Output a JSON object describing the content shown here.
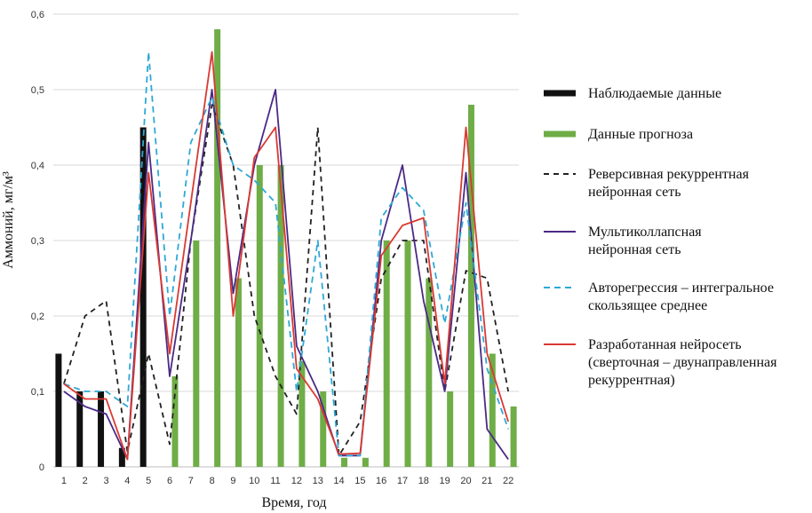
{
  "chart_data": {
    "type": "bar",
    "title": "",
    "xlabel": "Время, год",
    "ylabel": "Аммоний, мг/м³",
    "ylim": [
      0,
      0.6
    ],
    "y_ticks": [
      "0",
      "0,1",
      "0,2",
      "0,3",
      "0,4",
      "0,5",
      "0,6"
    ],
    "y_tick_values": [
      0,
      0.1,
      0.2,
      0.3,
      0.4,
      0.5,
      0.6
    ],
    "grid": true,
    "legend_position": "right",
    "categories": [
      "1",
      "2",
      "3",
      "4",
      "5",
      "6",
      "7",
      "8",
      "9",
      "10",
      "11",
      "12",
      "13",
      "14",
      "15",
      "16",
      "17",
      "18",
      "19",
      "20",
      "21",
      "22"
    ],
    "series": [
      {
        "name": "Наблюдаемые данные",
        "kind": "bar",
        "color": "#111111",
        "legend_lines": [
          "Наблюдаемые данные"
        ],
        "values": [
          0.15,
          0.1,
          0.1,
          0.025,
          0.45,
          null,
          null,
          null,
          null,
          null,
          null,
          null,
          null,
          null,
          null,
          null,
          null,
          null,
          null,
          null,
          null,
          null
        ]
      },
      {
        "name": "Данные прогноза",
        "kind": "bar",
        "color": "#6fad47",
        "legend_lines": [
          "Данные прогноза"
        ],
        "values": [
          null,
          null,
          null,
          null,
          null,
          0.12,
          0.3,
          0.58,
          0.25,
          0.4,
          0.4,
          0.14,
          0.1,
          0.012,
          0.012,
          0.3,
          0.3,
          0.25,
          0.1,
          0.48,
          0.15,
          0.08
        ]
      },
      {
        "name": "Реверсивная рекуррентная нейронная сеть",
        "kind": "line",
        "color": "#222222",
        "dash": "6,5",
        "legend_lines": [
          "Реверсивная рекуррентная",
          "нейронная сеть"
        ],
        "values": [
          0.11,
          0.2,
          0.22,
          0.02,
          0.15,
          0.03,
          0.3,
          0.48,
          0.4,
          0.2,
          0.12,
          0.07,
          0.45,
          0.015,
          0.06,
          0.25,
          0.3,
          0.3,
          0.1,
          0.26,
          0.25,
          0.1
        ]
      },
      {
        "name": "Мультиколлапсная нейронная сеть",
        "kind": "line",
        "color": "#4b2a86",
        "dash": "",
        "legend_lines": [
          "Мультиколлапсная",
          "нейронная сеть"
        ],
        "values": [
          0.1,
          0.08,
          0.07,
          0.01,
          0.43,
          0.12,
          0.3,
          0.5,
          0.23,
          0.4,
          0.5,
          0.16,
          0.1,
          0.015,
          0.015,
          0.3,
          0.4,
          0.22,
          0.1,
          0.39,
          0.05,
          0.01
        ]
      },
      {
        "name": "Авторегрессия – интегральное скользящее среднее",
        "kind": "line",
        "color": "#2ea8d6",
        "dash": "7,5",
        "legend_lines": [
          "Авторегрессия – интегральное",
          "скользящее среднее"
        ],
        "values": [
          0.11,
          0.1,
          0.1,
          0.08,
          0.55,
          0.2,
          0.43,
          0.49,
          0.4,
          0.38,
          0.35,
          0.1,
          0.3,
          0.015,
          0.015,
          0.33,
          0.37,
          0.34,
          0.19,
          0.35,
          0.13,
          0.05
        ]
      },
      {
        "name": "Разработанная нейросеть (сверточная – двунаправленная рекуррентная)",
        "kind": "line",
        "color": "#d93a33",
        "dash": "",
        "legend_lines": [
          "Разработанная нейросеть",
          "(сверточная – двунаправленная",
          "рекуррентная)"
        ],
        "values": [
          0.11,
          0.09,
          0.09,
          0.01,
          0.39,
          0.15,
          0.35,
          0.55,
          0.2,
          0.41,
          0.45,
          0.13,
          0.09,
          0.017,
          0.018,
          0.28,
          0.32,
          0.33,
          0.11,
          0.45,
          0.15,
          0.06
        ]
      }
    ]
  }
}
